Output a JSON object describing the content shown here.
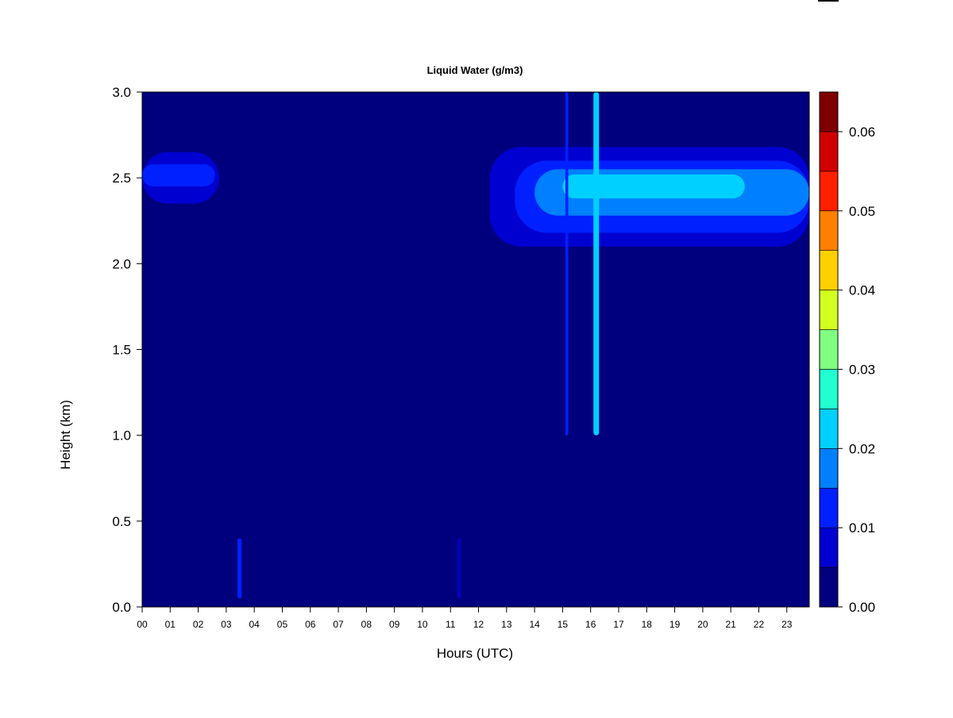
{
  "chart_data": {
    "type": "heatmap",
    "title": "Liquid Water (g/m3)",
    "xlabel": "Hours (UTC)",
    "ylabel": "Height (km)",
    "xlim": [
      0,
      23.8
    ],
    "ylim": [
      0,
      3.0
    ],
    "x_ticks": [
      0,
      1,
      2,
      3,
      4,
      5,
      6,
      7,
      8,
      9,
      10,
      11,
      12,
      13,
      14,
      15,
      16,
      17,
      18,
      19,
      20,
      21,
      22,
      23
    ],
    "x_tick_labels": [
      "00",
      "01",
      "02",
      "03",
      "04",
      "05",
      "06",
      "07",
      "08",
      "09",
      "10",
      "11",
      "12",
      "13",
      "14",
      "15",
      "16",
      "17",
      "18",
      "19",
      "20",
      "21",
      "22",
      "23"
    ],
    "y_ticks": [
      0.0,
      0.5,
      1.0,
      1.5,
      2.0,
      2.5,
      3.0
    ],
    "y_tick_labels": [
      "0.0",
      "0.5",
      "1.0",
      "1.5",
      "2.0",
      "2.5",
      "3.0"
    ],
    "colorbar": {
      "levels": [
        0,
        0.005,
        0.01,
        0.015,
        0.02,
        0.025,
        0.03,
        0.035,
        0.04,
        0.045,
        0.05,
        0.055,
        0.06,
        0.065
      ],
      "colors": [
        "#00007F",
        "#0000D0",
        "#0020FF",
        "#0080FF",
        "#00D0FF",
        "#20FFD0",
        "#80FF80",
        "#D0FF20",
        "#FFD000",
        "#FF8000",
        "#FF2000",
        "#D00000",
        "#7F0000"
      ],
      "tick_values": [
        0.0,
        0.01,
        0.02,
        0.03,
        0.04,
        0.05,
        0.06
      ],
      "tick_labels": [
        "0.00",
        "0.01",
        "0.02",
        "0.03",
        "0.04",
        "0.05",
        "0.06"
      ]
    },
    "background_value": 0.0,
    "features": [
      {
        "name": "early cloud layer outer",
        "x": [
          0.0,
          2.75
        ],
        "y": [
          2.35,
          2.65
        ],
        "value": 0.007
      },
      {
        "name": "early cloud layer core",
        "x": [
          0.0,
          2.6
        ],
        "y": [
          2.45,
          2.58
        ],
        "value": 0.012
      },
      {
        "name": "afternoon cloud outer",
        "x": [
          12.4,
          23.8
        ],
        "y": [
          2.1,
          2.68
        ],
        "value": 0.007
      },
      {
        "name": "afternoon cloud middle",
        "x": [
          13.3,
          23.8
        ],
        "y": [
          2.18,
          2.6
        ],
        "value": 0.012
      },
      {
        "name": "afternoon cloud core",
        "x": [
          14.0,
          23.8
        ],
        "y": [
          2.28,
          2.55
        ],
        "value": 0.017
      },
      {
        "name": "afternoon cloud peak",
        "x": [
          15.0,
          21.5
        ],
        "y": [
          2.38,
          2.52
        ],
        "value": 0.022
      },
      {
        "name": "vertical streak",
        "x": [
          16.1,
          16.3
        ],
        "y": [
          1.0,
          3.0
        ],
        "value": 0.02
      },
      {
        "name": "vertical streak",
        "x": [
          15.1,
          15.2
        ],
        "y": [
          1.0,
          3.0
        ],
        "value": 0.01
      },
      {
        "name": "low streak",
        "x": [
          3.4,
          3.55
        ],
        "y": [
          0.05,
          0.4
        ],
        "value": 0.01
      },
      {
        "name": "low streak",
        "x": [
          11.25,
          11.35
        ],
        "y": [
          0.05,
          0.4
        ],
        "value": 0.008
      }
    ]
  }
}
